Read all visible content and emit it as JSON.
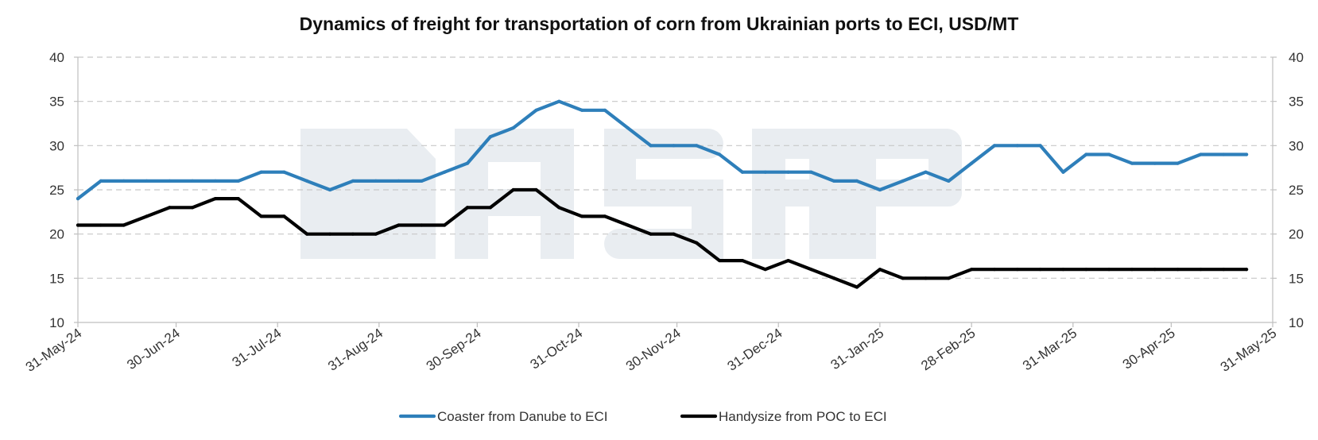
{
  "chart_data": {
    "type": "line",
    "title": "Dynamics of freight for transportation of corn from Ukrainian ports to ECI, USD/MT",
    "xlabel": "",
    "ylabel": "",
    "ylim": [
      10,
      40
    ],
    "y_ticks": [
      10,
      15,
      20,
      25,
      30,
      35,
      40
    ],
    "x_range": [
      "2024-05-31",
      "2025-05-31"
    ],
    "x_tick_dates": [
      "2024-05-31",
      "2024-06-30",
      "2024-07-31",
      "2024-08-31",
      "2024-09-30",
      "2024-10-31",
      "2024-11-30",
      "2024-12-31",
      "2025-01-31",
      "2025-02-28",
      "2025-03-31",
      "2025-04-30",
      "2025-05-31"
    ],
    "x_tick_labels": [
      "31-May-24",
      "30-Jun-24",
      "31-Jul-24",
      "31-Aug-24",
      "30-Sep-24",
      "31-Oct-24",
      "30-Nov-24",
      "31-Dec-24",
      "31-Jan-25",
      "28-Feb-25",
      "31-Mar-25",
      "30-Apr-25",
      "31-May-25"
    ],
    "grid": "horizontal dashed",
    "secondary_y_axis": true,
    "legend_position": "bottom",
    "watermark": "ASAP",
    "x": [
      "2024-05-31",
      "2024-06-07",
      "2024-06-14",
      "2024-06-21",
      "2024-06-28",
      "2024-07-05",
      "2024-07-12",
      "2024-07-19",
      "2024-07-26",
      "2024-08-02",
      "2024-08-09",
      "2024-08-16",
      "2024-08-23",
      "2024-08-30",
      "2024-09-06",
      "2024-09-13",
      "2024-09-20",
      "2024-09-27",
      "2024-10-04",
      "2024-10-11",
      "2024-10-18",
      "2024-10-25",
      "2024-11-01",
      "2024-11-08",
      "2024-11-15",
      "2024-11-22",
      "2024-11-29",
      "2024-12-06",
      "2024-12-13",
      "2024-12-20",
      "2024-12-27",
      "2025-01-03",
      "2025-01-10",
      "2025-01-17",
      "2025-01-24",
      "2025-01-31",
      "2025-02-07",
      "2025-02-14",
      "2025-02-21",
      "2025-02-28",
      "2025-03-07",
      "2025-03-14",
      "2025-03-21",
      "2025-03-28",
      "2025-04-04",
      "2025-04-11",
      "2025-04-18",
      "2025-04-25",
      "2025-05-02",
      "2025-05-09",
      "2025-05-16",
      "2025-05-23"
    ],
    "series": [
      {
        "name": "Coaster from Danube to ECI",
        "color": "#2e7fba",
        "values": [
          24,
          26,
          26,
          26,
          26,
          26,
          26,
          26,
          27,
          27,
          26,
          25,
          26,
          26,
          26,
          26,
          27,
          28,
          31,
          32,
          34,
          35,
          34,
          34,
          32,
          30,
          30,
          30,
          29,
          27,
          27,
          27,
          27,
          26,
          26,
          25,
          26,
          27,
          26,
          28,
          30,
          30,
          30,
          27,
          29,
          29,
          28,
          28,
          28,
          29,
          29,
          29
        ]
      },
      {
        "name": "Handysize from POC to ECI",
        "color": "#000000",
        "values": [
          21,
          21,
          21,
          22,
          23,
          23,
          24,
          24,
          22,
          22,
          20,
          20,
          20,
          20,
          21,
          21,
          21,
          23,
          23,
          25,
          25,
          23,
          22,
          22,
          21,
          20,
          20,
          19,
          17,
          17,
          16,
          17,
          16,
          15,
          14,
          16,
          15,
          15,
          15,
          16,
          16,
          16,
          16,
          16,
          16,
          16,
          16,
          16,
          16,
          16,
          16,
          16
        ]
      }
    ]
  }
}
